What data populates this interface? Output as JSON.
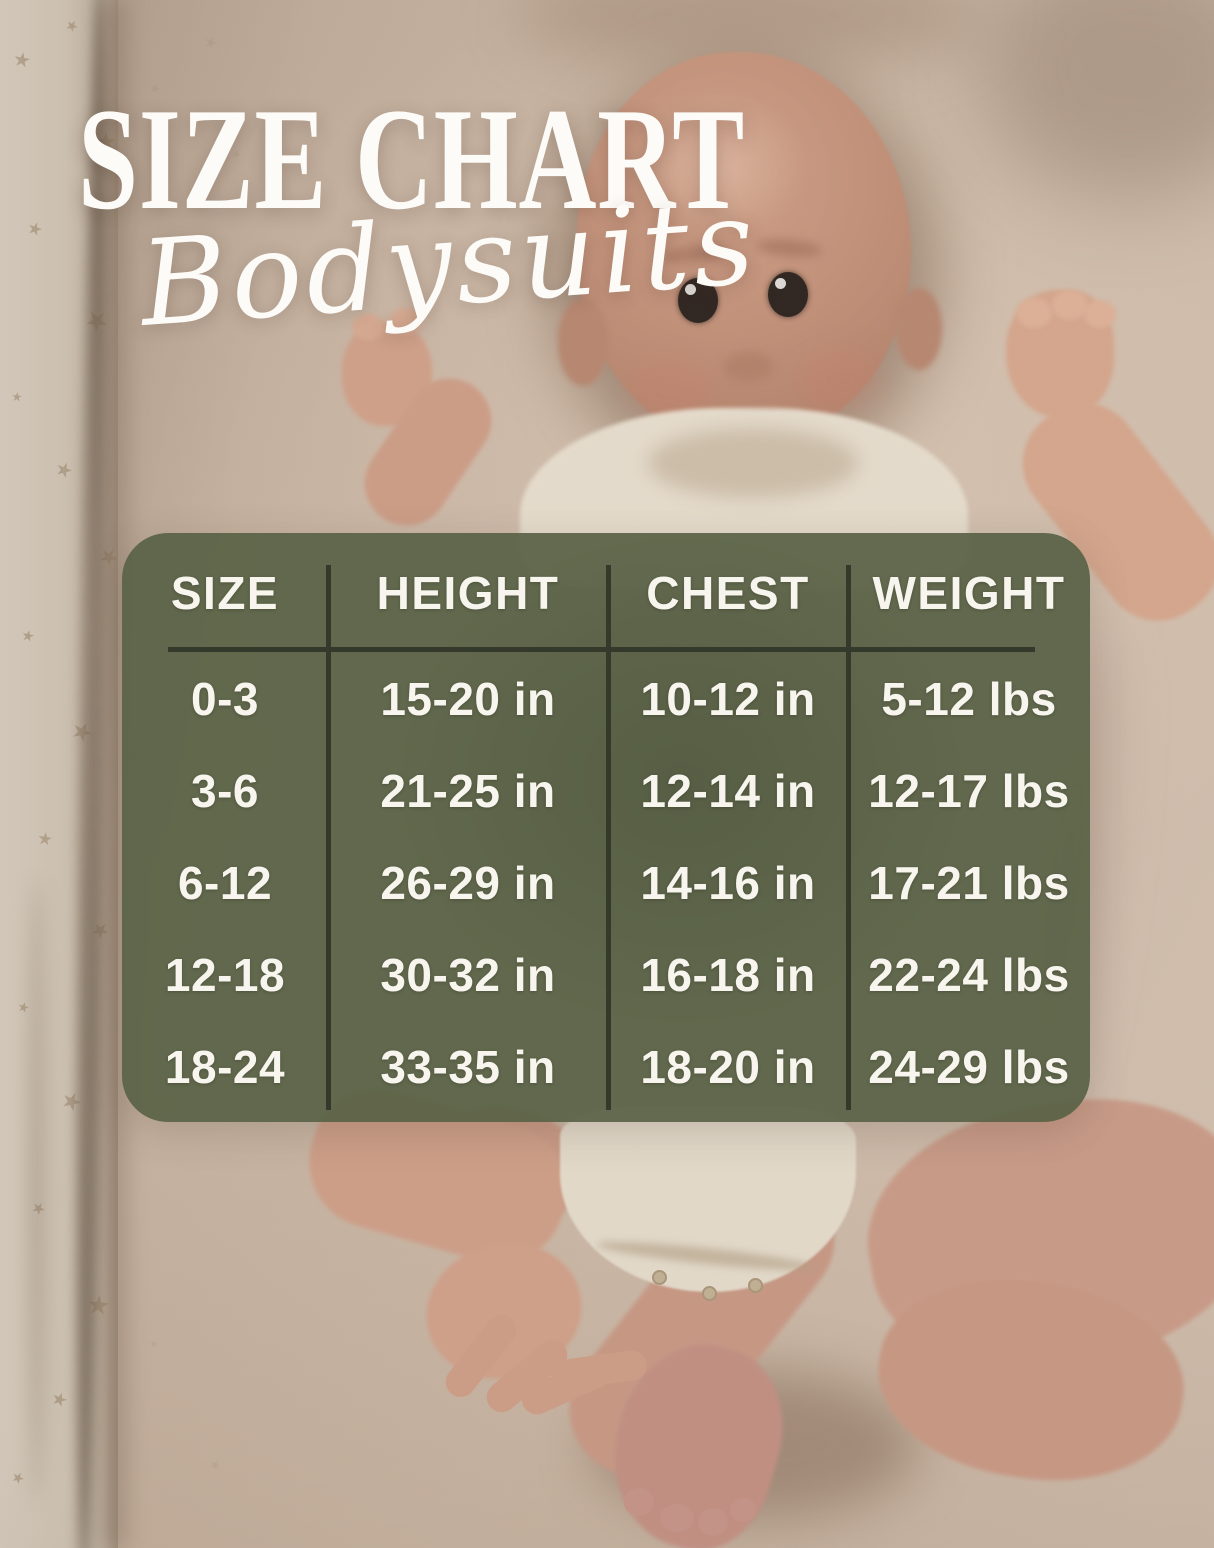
{
  "title": {
    "main": "SIZE CHART",
    "subtitle": "Bodysuits"
  },
  "table": {
    "headers": [
      "SIZE",
      "HEIGHT",
      "CHEST",
      "WEIGHT"
    ],
    "rows": [
      [
        "0-3",
        "15-20 in",
        "10-12 in",
        "5-12 lbs"
      ],
      [
        "3-6",
        "21-25 in",
        "12-14 in",
        "12-17 lbs"
      ],
      [
        "6-12",
        "26-29 in",
        "14-16 in",
        "17-21 lbs"
      ],
      [
        "12-18",
        "30-32 in",
        "16-18 in",
        "22-24 lbs"
      ],
      [
        "18-24",
        "33-35 in",
        "18-20 in",
        "24-29 lbs"
      ]
    ]
  },
  "chart_data": {
    "type": "table",
    "title": "SIZE CHART Bodysuits",
    "columns": [
      "SIZE",
      "HEIGHT",
      "CHEST",
      "WEIGHT"
    ],
    "rows": [
      [
        "0-3",
        "15-20 in",
        "10-12 in",
        "5-12 lbs"
      ],
      [
        "3-6",
        "21-25 in",
        "12-14 in",
        "12-17 lbs"
      ],
      [
        "6-12",
        "26-29 in",
        "14-16 in",
        "17-21 lbs"
      ],
      [
        "12-18",
        "30-32 in",
        "16-18 in",
        "22-24 lbs"
      ],
      [
        "18-24",
        "33-35 in",
        "18-20 in",
        "24-29 lbs"
      ]
    ]
  },
  "colors": {
    "panel_green": "#5a6347",
    "divider_dark": "#343a2b",
    "text_white": "#f7f5ee",
    "sheet_beige": "#c8b5a3"
  }
}
